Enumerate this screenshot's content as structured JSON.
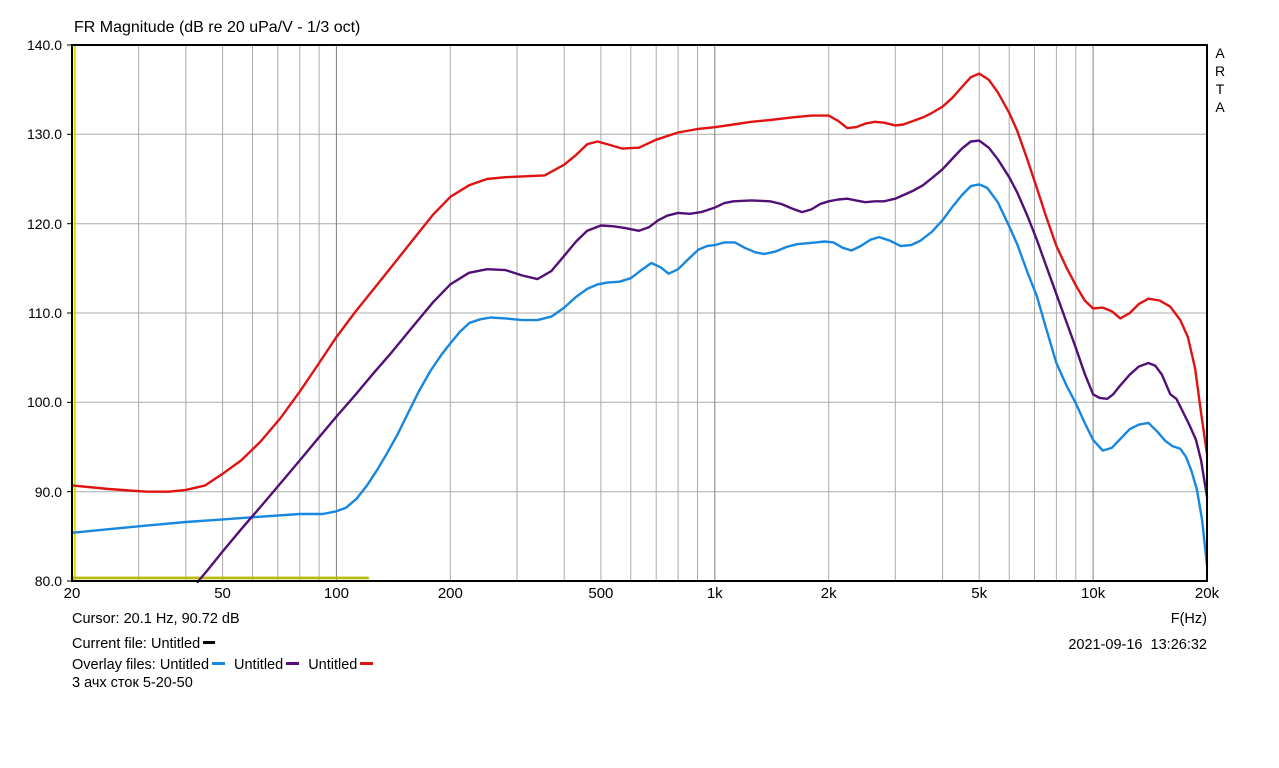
{
  "title": "FR Magnitude (dB re 20 uPa/V - 1/3 oct)",
  "branding": {
    "label": "ARTA"
  },
  "cursor_readout": "Cursor: 20.1 Hz, 90.72 dB",
  "legend": {
    "current_label": "Current file:",
    "current_name": "Untitled",
    "current_color": "#000000",
    "overlay_label": "Overlay files:",
    "overlays": [
      {
        "name": "Untitled",
        "color": "#1787e0"
      },
      {
        "name": "Untitled",
        "color": "#521077"
      },
      {
        "name": "Untitled",
        "color": "#e01212"
      }
    ]
  },
  "note": "3 ачх сток 5-20-50",
  "datetime": "2021-09-16  13:26:32",
  "x_axis_unit": "F(Hz)",
  "chart_data": {
    "type": "line",
    "title": "FR Magnitude (dB re 20 uPa/V - 1/3 oct)",
    "xlabel": "F(Hz)",
    "ylabel": "dB re 20 uPa/V",
    "x_scale": "log",
    "xlim": [
      20,
      20000
    ],
    "ylim": [
      80,
      140
    ],
    "grid": true,
    "legend_position": "bottom-left",
    "y_ticks": [
      [
        140,
        "140.0"
      ],
      [
        130,
        "130.0"
      ],
      [
        120,
        "120.0"
      ],
      [
        110,
        "110.0"
      ],
      [
        100,
        "100.0"
      ],
      [
        90,
        "90.0"
      ],
      [
        80,
        "80.0"
      ]
    ],
    "x_ticks": [
      [
        20,
        "20"
      ],
      [
        50,
        "50"
      ],
      [
        100,
        "100"
      ],
      [
        200,
        "200"
      ],
      [
        500,
        "500"
      ],
      [
        1000,
        "1k"
      ],
      [
        2000,
        "2k"
      ],
      [
        5000,
        "5k"
      ],
      [
        10000,
        "10k"
      ],
      [
        20000,
        "20k"
      ]
    ],
    "x_minor_gridlines": [
      30,
      40,
      50,
      60,
      70,
      80,
      90,
      200,
      300,
      400,
      500,
      600,
      700,
      800,
      900,
      2000,
      3000,
      4000,
      5000,
      6000,
      7000,
      8000,
      9000
    ],
    "x_major_gridlines": [
      100,
      1000,
      10000
    ],
    "colors": {
      "grid_minor": "#ababab",
      "grid_major": "#7f7f7f",
      "border": "#000000"
    },
    "cursor": {
      "freq_hz": 20.1,
      "value_db": 90.72,
      "color": "#dcdc00"
    },
    "series": [
      {
        "id": "current",
        "name": "Untitled (current)",
        "color": "#b9b909",
        "width": 2.6,
        "points": [
          [
            20,
            80.35
          ],
          [
            121,
            80.35
          ]
        ]
      },
      {
        "id": "overlay-blue",
        "name": "Untitled",
        "color": "#1787e0",
        "width": 2.4,
        "points": [
          [
            20,
            85.4
          ],
          [
            25,
            85.8
          ],
          [
            31.5,
            86.2
          ],
          [
            40,
            86.6
          ],
          [
            50,
            86.9
          ],
          [
            63,
            87.2
          ],
          [
            80,
            87.5
          ],
          [
            92,
            87.5
          ],
          [
            100,
            87.8
          ],
          [
            106,
            88.2
          ],
          [
            113,
            89.2
          ],
          [
            120,
            90.6
          ],
          [
            128,
            92.4
          ],
          [
            136,
            94.3
          ],
          [
            145,
            96.4
          ],
          [
            155,
            98.9
          ],
          [
            165,
            101.2
          ],
          [
            177,
            103.5
          ],
          [
            190,
            105.4
          ],
          [
            200,
            106.6
          ],
          [
            212,
            107.9
          ],
          [
            225,
            108.9
          ],
          [
            240,
            109.3
          ],
          [
            255,
            109.5
          ],
          [
            280,
            109.4
          ],
          [
            310,
            109.2
          ],
          [
            340,
            109.2
          ],
          [
            370,
            109.6
          ],
          [
            400,
            110.6
          ],
          [
            430,
            111.8
          ],
          [
            460,
            112.7
          ],
          [
            490,
            113.2
          ],
          [
            520,
            113.4
          ],
          [
            560,
            113.5
          ],
          [
            600,
            113.9
          ],
          [
            640,
            114.8
          ],
          [
            680,
            115.6
          ],
          [
            720,
            115.1
          ],
          [
            755,
            114.4
          ],
          [
            800,
            114.9
          ],
          [
            855,
            116.1
          ],
          [
            905,
            117.1
          ],
          [
            955,
            117.5
          ],
          [
            1000,
            117.6
          ],
          [
            1060,
            117.9
          ],
          [
            1130,
            117.9
          ],
          [
            1200,
            117.3
          ],
          [
            1280,
            116.8
          ],
          [
            1350,
            116.6
          ],
          [
            1450,
            116.9
          ],
          [
            1550,
            117.4
          ],
          [
            1650,
            117.7
          ],
          [
            1750,
            117.8
          ],
          [
            1850,
            117.9
          ],
          [
            1950,
            118.0
          ],
          [
            2060,
            117.9
          ],
          [
            2180,
            117.3
          ],
          [
            2300,
            117.0
          ],
          [
            2430,
            117.5
          ],
          [
            2580,
            118.2
          ],
          [
            2720,
            118.5
          ],
          [
            2900,
            118.1
          ],
          [
            3100,
            117.5
          ],
          [
            3300,
            117.6
          ],
          [
            3500,
            118.1
          ],
          [
            3750,
            119.1
          ],
          [
            4000,
            120.4
          ],
          [
            4250,
            121.9
          ],
          [
            4500,
            123.2
          ],
          [
            4750,
            124.2
          ],
          [
            5000,
            124.4
          ],
          [
            5250,
            124.0
          ],
          [
            5600,
            122.4
          ],
          [
            6000,
            119.7
          ],
          [
            6300,
            117.7
          ],
          [
            6700,
            114.6
          ],
          [
            7100,
            111.9
          ],
          [
            7500,
            108.4
          ],
          [
            8000,
            104.4
          ],
          [
            8500,
            101.9
          ],
          [
            9000,
            99.9
          ],
          [
            9500,
            97.7
          ],
          [
            10000,
            95.8
          ],
          [
            10600,
            94.6
          ],
          [
            11200,
            94.9
          ],
          [
            11800,
            95.9
          ],
          [
            12500,
            97.0
          ],
          [
            13200,
            97.5
          ],
          [
            14000,
            97.7
          ],
          [
            14800,
            96.7
          ],
          [
            15500,
            95.7
          ],
          [
            16200,
            95.1
          ],
          [
            17000,
            94.8
          ],
          [
            17600,
            93.9
          ],
          [
            18200,
            92.3
          ],
          [
            18800,
            90.3
          ],
          [
            19400,
            86.9
          ],
          [
            20000,
            81.7
          ]
        ]
      },
      {
        "id": "overlay-purple",
        "name": "Untitled",
        "color": "#521077",
        "width": 2.4,
        "points": [
          [
            43,
            79.9
          ],
          [
            46,
            81.4
          ],
          [
            50,
            83.3
          ],
          [
            56,
            85.8
          ],
          [
            63,
            88.3
          ],
          [
            71,
            90.9
          ],
          [
            80,
            93.5
          ],
          [
            90,
            96.1
          ],
          [
            100,
            98.4
          ],
          [
            112,
            100.8
          ],
          [
            125,
            103.2
          ],
          [
            140,
            105.6
          ],
          [
            160,
            108.6
          ],
          [
            180,
            111.2
          ],
          [
            200,
            113.2
          ],
          [
            224,
            114.5
          ],
          [
            250,
            114.9
          ],
          [
            280,
            114.8
          ],
          [
            310,
            114.2
          ],
          [
            340,
            113.8
          ],
          [
            370,
            114.7
          ],
          [
            400,
            116.4
          ],
          [
            430,
            118.0
          ],
          [
            460,
            119.2
          ],
          [
            500,
            119.8
          ],
          [
            540,
            119.7
          ],
          [
            580,
            119.5
          ],
          [
            630,
            119.2
          ],
          [
            670,
            119.6
          ],
          [
            710,
            120.4
          ],
          [
            750,
            120.9
          ],
          [
            800,
            121.2
          ],
          [
            860,
            121.1
          ],
          [
            920,
            121.3
          ],
          [
            1000,
            121.8
          ],
          [
            1060,
            122.3
          ],
          [
            1120,
            122.5
          ],
          [
            1250,
            122.6
          ],
          [
            1400,
            122.5
          ],
          [
            1500,
            122.2
          ],
          [
            1600,
            121.7
          ],
          [
            1700,
            121.3
          ],
          [
            1800,
            121.6
          ],
          [
            1900,
            122.2
          ],
          [
            2000,
            122.5
          ],
          [
            2120,
            122.7
          ],
          [
            2240,
            122.8
          ],
          [
            2360,
            122.6
          ],
          [
            2500,
            122.4
          ],
          [
            2650,
            122.5
          ],
          [
            2800,
            122.5
          ],
          [
            3000,
            122.8
          ],
          [
            3150,
            123.2
          ],
          [
            3350,
            123.7
          ],
          [
            3550,
            124.3
          ],
          [
            3750,
            125.1
          ],
          [
            4000,
            126.1
          ],
          [
            4250,
            127.3
          ],
          [
            4500,
            128.4
          ],
          [
            4750,
            129.2
          ],
          [
            5000,
            129.3
          ],
          [
            5300,
            128.5
          ],
          [
            5600,
            127.2
          ],
          [
            6000,
            125.2
          ],
          [
            6300,
            123.5
          ],
          [
            6700,
            120.9
          ],
          [
            7100,
            118.2
          ],
          [
            7500,
            115.4
          ],
          [
            8000,
            112.1
          ],
          [
            8500,
            109.0
          ],
          [
            9000,
            106.1
          ],
          [
            9500,
            103.2
          ],
          [
            10000,
            100.9
          ],
          [
            10400,
            100.5
          ],
          [
            10900,
            100.4
          ],
          [
            11300,
            100.9
          ],
          [
            11800,
            101.9
          ],
          [
            12500,
            103.1
          ],
          [
            13200,
            104.0
          ],
          [
            14000,
            104.4
          ],
          [
            14600,
            104.1
          ],
          [
            15200,
            103.1
          ],
          [
            16000,
            100.9
          ],
          [
            16600,
            100.4
          ],
          [
            17200,
            99.1
          ],
          [
            18000,
            97.4
          ],
          [
            18700,
            95.8
          ],
          [
            19300,
            93.5
          ],
          [
            20000,
            89.4
          ]
        ]
      },
      {
        "id": "overlay-red",
        "name": "Untitled",
        "color": "#e01212",
        "width": 2.4,
        "points": [
          [
            20,
            90.7
          ],
          [
            25,
            90.3
          ],
          [
            31.5,
            90.0
          ],
          [
            36,
            90.0
          ],
          [
            40,
            90.2
          ],
          [
            45,
            90.7
          ],
          [
            50,
            92.0
          ],
          [
            56,
            93.5
          ],
          [
            63,
            95.6
          ],
          [
            71,
            98.2
          ],
          [
            80,
            101.2
          ],
          [
            90,
            104.4
          ],
          [
            100,
            107.3
          ],
          [
            112,
            110.1
          ],
          [
            125,
            112.6
          ],
          [
            140,
            115.2
          ],
          [
            160,
            118.3
          ],
          [
            180,
            121.0
          ],
          [
            200,
            123.0
          ],
          [
            224,
            124.3
          ],
          [
            250,
            125.0
          ],
          [
            280,
            125.2
          ],
          [
            315,
            125.3
          ],
          [
            355,
            125.4
          ],
          [
            400,
            126.6
          ],
          [
            430,
            127.7
          ],
          [
            460,
            128.9
          ],
          [
            490,
            129.2
          ],
          [
            530,
            128.8
          ],
          [
            570,
            128.4
          ],
          [
            630,
            128.5
          ],
          [
            700,
            129.4
          ],
          [
            800,
            130.2
          ],
          [
            900,
            130.6
          ],
          [
            1000,
            130.8
          ],
          [
            1120,
            131.1
          ],
          [
            1250,
            131.4
          ],
          [
            1400,
            131.6
          ],
          [
            1600,
            131.9
          ],
          [
            1800,
            132.1
          ],
          [
            2000,
            132.1
          ],
          [
            2120,
            131.5
          ],
          [
            2240,
            130.7
          ],
          [
            2360,
            130.8
          ],
          [
            2500,
            131.2
          ],
          [
            2650,
            131.4
          ],
          [
            2800,
            131.3
          ],
          [
            3000,
            131.0
          ],
          [
            3150,
            131.1
          ],
          [
            3350,
            131.5
          ],
          [
            3550,
            131.9
          ],
          [
            3750,
            132.4
          ],
          [
            4000,
            133.1
          ],
          [
            4250,
            134.1
          ],
          [
            4500,
            135.3
          ],
          [
            4750,
            136.4
          ],
          [
            5000,
            136.8
          ],
          [
            5300,
            136.1
          ],
          [
            5600,
            134.7
          ],
          [
            6000,
            132.4
          ],
          [
            6300,
            130.4
          ],
          [
            6700,
            127.2
          ],
          [
            7100,
            124.0
          ],
          [
            7500,
            120.9
          ],
          [
            8000,
            117.5
          ],
          [
            8500,
            115.1
          ],
          [
            9000,
            113.1
          ],
          [
            9500,
            111.4
          ],
          [
            10000,
            110.5
          ],
          [
            10600,
            110.6
          ],
          [
            11200,
            110.2
          ],
          [
            11800,
            109.4
          ],
          [
            12500,
            110.0
          ],
          [
            13200,
            111.0
          ],
          [
            14000,
            111.6
          ],
          [
            15000,
            111.4
          ],
          [
            16000,
            110.7
          ],
          [
            17000,
            109.2
          ],
          [
            17800,
            107.3
          ],
          [
            18600,
            103.8
          ],
          [
            19300,
            98.8
          ],
          [
            20000,
            94.2
          ]
        ]
      }
    ]
  }
}
